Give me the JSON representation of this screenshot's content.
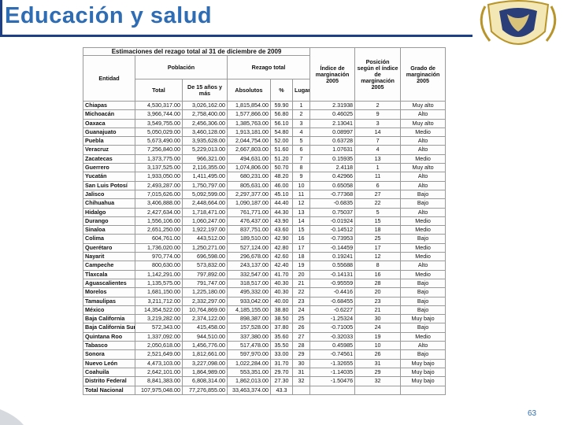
{
  "header": {
    "title": "Educación y salud"
  },
  "table": {
    "title": "Estimaciones del rezago total al 31 de diciembre de 2009",
    "header_top": [
      "Entidad",
      "Población",
      "Rezago total",
      "Índice de marginación 2005",
      "Posición según el índice de marginación 2005",
      "Grado de marginación 2005"
    ],
    "header_sub": [
      "Total",
      "De 15 años y más",
      "Absolutos",
      "%",
      "Lugar"
    ],
    "rows": [
      [
        "Chiapas",
        "4,530,317.00",
        "3,026,162.00",
        "1,815,854.00",
        "59.90",
        "1",
        "2.31938",
        "2",
        "Muy alto"
      ],
      [
        "Michoacán",
        "3,966,744.00",
        "2,758,400.00",
        "1,577,866.00",
        "56.80",
        "2",
        "0.46025",
        "9",
        "Alto"
      ],
      [
        "Oaxaca",
        "3,549,755.00",
        "2,456,306.00",
        "1,385,763.00",
        "56.10",
        "3",
        "2.13041",
        "3",
        "Muy alto"
      ],
      [
        "Guanajuato",
        "5,050,029.00",
        "3,460,128.00",
        "1,913,181.00",
        "54.80",
        "4",
        "0.08997",
        "14",
        "Medio"
      ],
      [
        "Puebla",
        "5,673,490.00",
        "3,935,628.00",
        "2,044,754.00",
        "52.00",
        "5",
        "0.63728",
        "7",
        "Alto"
      ],
      [
        "Veracruz",
        "7,256,840.00",
        "5,229,013.00",
        "2,667,803.00",
        "51.60",
        "6",
        "1.07631",
        "4",
        "Alto"
      ],
      [
        "Zacatecas",
        "1,373,775.00",
        "966,321.00",
        "494,631.00",
        "51.20",
        "7",
        "0.15935",
        "13",
        "Medio"
      ],
      [
        "Guerrero",
        "3,137,525.00",
        "2,116,355.00",
        "1,074,806.00",
        "50.70",
        "8",
        "2.4118",
        "1",
        "Muy alto"
      ],
      [
        "Yucatán",
        "1,933,050.00",
        "1,411,495.00",
        "680,231.00",
        "48.20",
        "9",
        "0.42966",
        "11",
        "Alto"
      ],
      [
        "San Luis Potosí",
        "2,493,287.00",
        "1,750,797.00",
        "805,631.00",
        "46.00",
        "10",
        "0.65058",
        "6",
        "Alto"
      ],
      [
        "Jalisco",
        "7,015,626.00",
        "5,092,599.00",
        "2,297,377.00",
        "45.10",
        "11",
        "-0.77368",
        "27",
        "Bajo"
      ],
      [
        "Chihuahua",
        "3,406,888.00",
        "2,448,664.00",
        "1,090,187.00",
        "44.40",
        "12",
        "-0.6835",
        "22",
        "Bajo"
      ],
      [
        "Hidalgo",
        "2,427,634.00",
        "1,718,471.00",
        "761,771.00",
        "44.30",
        "13",
        "0.75037",
        "5",
        "Alto"
      ],
      [
        "Durango",
        "1,556,106.00",
        "1,060,247.00",
        "476,437.00",
        "43.90",
        "14",
        "-0.01924",
        "15",
        "Medio"
      ],
      [
        "Sinaloa",
        "2,651,250.00",
        "1,922,197.00",
        "837,751.00",
        "43.60",
        "15",
        "-0.14512",
        "18",
        "Medio"
      ],
      [
        "Colima",
        "604,761.00",
        "443,512.00",
        "189,510.00",
        "42.90",
        "16",
        "-0.73953",
        "25",
        "Bajo"
      ],
      [
        "Querétaro",
        "1,736,020.00",
        "1,250,271.00",
        "527,124.00",
        "42.80",
        "17",
        "-0.14459",
        "17",
        "Medio"
      ],
      [
        "Nayarit",
        "970,774.00",
        "696,598.00",
        "296,678.00",
        "42.60",
        "18",
        "0.19241",
        "12",
        "Medio"
      ],
      [
        "Campeche",
        "800,630.00",
        "573,832.00",
        "243,137.00",
        "42.40",
        "19",
        "0.55688",
        "8",
        "Alto"
      ],
      [
        "Tlaxcala",
        "1,142,291.00",
        "797,892.00",
        "332,547.00",
        "41.70",
        "20",
        "-0.14131",
        "16",
        "Medio"
      ],
      [
        "Aguascalientes",
        "1,135,575.00",
        "791,747.00",
        "318,517.00",
        "40.30",
        "21",
        "-0.95559",
        "28",
        "Bajo"
      ],
      [
        "Morelos",
        "1,681,150.00",
        "1,225,180.00",
        "495,332.00",
        "40.30",
        "22",
        "-0.4416",
        "20",
        "Bajo"
      ],
      [
        "Tamaulipas",
        "3,211,712.00",
        "2,332,297.00",
        "933,042.00",
        "40.00",
        "23",
        "-0.68455",
        "23",
        "Bajo"
      ],
      [
        "México",
        "14,354,522.00",
        "10,764,869.00",
        "4,185,155.00",
        "38.80",
        "24",
        "-0.6227",
        "21",
        "Bajo"
      ],
      [
        "Baja California",
        "3,219,282.00",
        "2,374,122.00",
        "898,387.00",
        "38.50",
        "25",
        "-1.25324",
        "30",
        "Muy bajo"
      ],
      [
        "Baja California Sur",
        "572,343.00",
        "415,458.00",
        "157,528.00",
        "37.80",
        "26",
        "-0.71005",
        "24",
        "Bajo"
      ],
      [
        "Quintana Roo",
        "1,337,092.00",
        "944,510.00",
        "337,380.00",
        "35.60",
        "27",
        "-0.32033",
        "19",
        "Medio"
      ],
      [
        "Tabasco",
        "2,050,618.00",
        "1,456,776.00",
        "517,478.00",
        "35.50",
        "28",
        "0.45985",
        "10",
        "Alto"
      ],
      [
        "Sonora",
        "2,521,649.00",
        "1,812,661.00",
        "597,970.00",
        "33.00",
        "29",
        "-0.74561",
        "26",
        "Bajo"
      ],
      [
        "Nuevo León",
        "4,473,103.00",
        "3,227,098.00",
        "1,022,284.00",
        "31.70",
        "30",
        "-1.32655",
        "31",
        "Muy bajo"
      ],
      [
        "Coahuila",
        "2,642,101.00",
        "1,864,989.00",
        "553,351.00",
        "29.70",
        "31",
        "-1.14035",
        "29",
        "Muy bajo"
      ],
      [
        "Distrito Federal",
        "8,841,383.00",
        "6,808,314.00",
        "1,862,013.00",
        "27.30",
        "32",
        "-1.50476",
        "32",
        "Muy bajo"
      ],
      [
        "Total Nacional",
        "107,975,048.00",
        "77,276,855.00",
        "33,463,374.00",
        "43.3"
      ]
    ]
  },
  "page_number": "63"
}
